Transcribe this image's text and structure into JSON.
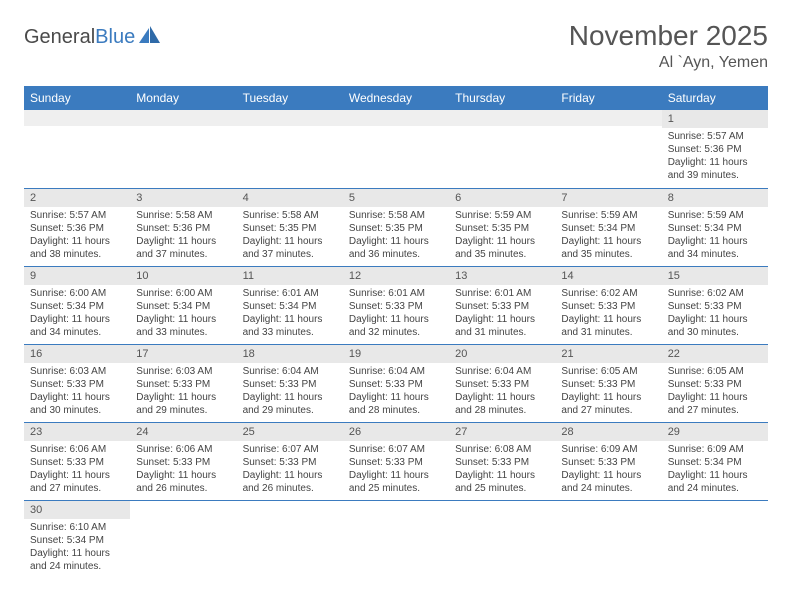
{
  "brand": {
    "part1": "General",
    "part2": "Blue"
  },
  "title": "November 2025",
  "location": "Al `Ayn, Yemen",
  "colors": {
    "header_bg": "#3b7bbf",
    "header_text": "#ffffff",
    "daynum_bg": "#e8e8e8",
    "border": "#3b7bbf",
    "text": "#444444",
    "background": "#ffffff"
  },
  "typography": {
    "title_fontsize": 28,
    "location_fontsize": 16,
    "dayheader_fontsize": 12,
    "daynum_fontsize": 11,
    "body_fontsize": 10
  },
  "day_headers": [
    "Sunday",
    "Monday",
    "Tuesday",
    "Wednesday",
    "Thursday",
    "Friday",
    "Saturday"
  ],
  "weeks": [
    [
      null,
      null,
      null,
      null,
      null,
      null,
      {
        "n": "1",
        "sr": "Sunrise: 5:57 AM",
        "ss": "Sunset: 5:36 PM",
        "dl": "Daylight: 11 hours and 39 minutes."
      }
    ],
    [
      {
        "n": "2",
        "sr": "Sunrise: 5:57 AM",
        "ss": "Sunset: 5:36 PM",
        "dl": "Daylight: 11 hours and 38 minutes."
      },
      {
        "n": "3",
        "sr": "Sunrise: 5:58 AM",
        "ss": "Sunset: 5:36 PM",
        "dl": "Daylight: 11 hours and 37 minutes."
      },
      {
        "n": "4",
        "sr": "Sunrise: 5:58 AM",
        "ss": "Sunset: 5:35 PM",
        "dl": "Daylight: 11 hours and 37 minutes."
      },
      {
        "n": "5",
        "sr": "Sunrise: 5:58 AM",
        "ss": "Sunset: 5:35 PM",
        "dl": "Daylight: 11 hours and 36 minutes."
      },
      {
        "n": "6",
        "sr": "Sunrise: 5:59 AM",
        "ss": "Sunset: 5:35 PM",
        "dl": "Daylight: 11 hours and 35 minutes."
      },
      {
        "n": "7",
        "sr": "Sunrise: 5:59 AM",
        "ss": "Sunset: 5:34 PM",
        "dl": "Daylight: 11 hours and 35 minutes."
      },
      {
        "n": "8",
        "sr": "Sunrise: 5:59 AM",
        "ss": "Sunset: 5:34 PM",
        "dl": "Daylight: 11 hours and 34 minutes."
      }
    ],
    [
      {
        "n": "9",
        "sr": "Sunrise: 6:00 AM",
        "ss": "Sunset: 5:34 PM",
        "dl": "Daylight: 11 hours and 34 minutes."
      },
      {
        "n": "10",
        "sr": "Sunrise: 6:00 AM",
        "ss": "Sunset: 5:34 PM",
        "dl": "Daylight: 11 hours and 33 minutes."
      },
      {
        "n": "11",
        "sr": "Sunrise: 6:01 AM",
        "ss": "Sunset: 5:34 PM",
        "dl": "Daylight: 11 hours and 33 minutes."
      },
      {
        "n": "12",
        "sr": "Sunrise: 6:01 AM",
        "ss": "Sunset: 5:33 PM",
        "dl": "Daylight: 11 hours and 32 minutes."
      },
      {
        "n": "13",
        "sr": "Sunrise: 6:01 AM",
        "ss": "Sunset: 5:33 PM",
        "dl": "Daylight: 11 hours and 31 minutes."
      },
      {
        "n": "14",
        "sr": "Sunrise: 6:02 AM",
        "ss": "Sunset: 5:33 PM",
        "dl": "Daylight: 11 hours and 31 minutes."
      },
      {
        "n": "15",
        "sr": "Sunrise: 6:02 AM",
        "ss": "Sunset: 5:33 PM",
        "dl": "Daylight: 11 hours and 30 minutes."
      }
    ],
    [
      {
        "n": "16",
        "sr": "Sunrise: 6:03 AM",
        "ss": "Sunset: 5:33 PM",
        "dl": "Daylight: 11 hours and 30 minutes."
      },
      {
        "n": "17",
        "sr": "Sunrise: 6:03 AM",
        "ss": "Sunset: 5:33 PM",
        "dl": "Daylight: 11 hours and 29 minutes."
      },
      {
        "n": "18",
        "sr": "Sunrise: 6:04 AM",
        "ss": "Sunset: 5:33 PM",
        "dl": "Daylight: 11 hours and 29 minutes."
      },
      {
        "n": "19",
        "sr": "Sunrise: 6:04 AM",
        "ss": "Sunset: 5:33 PM",
        "dl": "Daylight: 11 hours and 28 minutes."
      },
      {
        "n": "20",
        "sr": "Sunrise: 6:04 AM",
        "ss": "Sunset: 5:33 PM",
        "dl": "Daylight: 11 hours and 28 minutes."
      },
      {
        "n": "21",
        "sr": "Sunrise: 6:05 AM",
        "ss": "Sunset: 5:33 PM",
        "dl": "Daylight: 11 hours and 27 minutes."
      },
      {
        "n": "22",
        "sr": "Sunrise: 6:05 AM",
        "ss": "Sunset: 5:33 PM",
        "dl": "Daylight: 11 hours and 27 minutes."
      }
    ],
    [
      {
        "n": "23",
        "sr": "Sunrise: 6:06 AM",
        "ss": "Sunset: 5:33 PM",
        "dl": "Daylight: 11 hours and 27 minutes."
      },
      {
        "n": "24",
        "sr": "Sunrise: 6:06 AM",
        "ss": "Sunset: 5:33 PM",
        "dl": "Daylight: 11 hours and 26 minutes."
      },
      {
        "n": "25",
        "sr": "Sunrise: 6:07 AM",
        "ss": "Sunset: 5:33 PM",
        "dl": "Daylight: 11 hours and 26 minutes."
      },
      {
        "n": "26",
        "sr": "Sunrise: 6:07 AM",
        "ss": "Sunset: 5:33 PM",
        "dl": "Daylight: 11 hours and 25 minutes."
      },
      {
        "n": "27",
        "sr": "Sunrise: 6:08 AM",
        "ss": "Sunset: 5:33 PM",
        "dl": "Daylight: 11 hours and 25 minutes."
      },
      {
        "n": "28",
        "sr": "Sunrise: 6:09 AM",
        "ss": "Sunset: 5:33 PM",
        "dl": "Daylight: 11 hours and 24 minutes."
      },
      {
        "n": "29",
        "sr": "Sunrise: 6:09 AM",
        "ss": "Sunset: 5:34 PM",
        "dl": "Daylight: 11 hours and 24 minutes."
      }
    ],
    [
      {
        "n": "30",
        "sr": "Sunrise: 6:10 AM",
        "ss": "Sunset: 5:34 PM",
        "dl": "Daylight: 11 hours and 24 minutes."
      },
      null,
      null,
      null,
      null,
      null,
      null
    ]
  ]
}
